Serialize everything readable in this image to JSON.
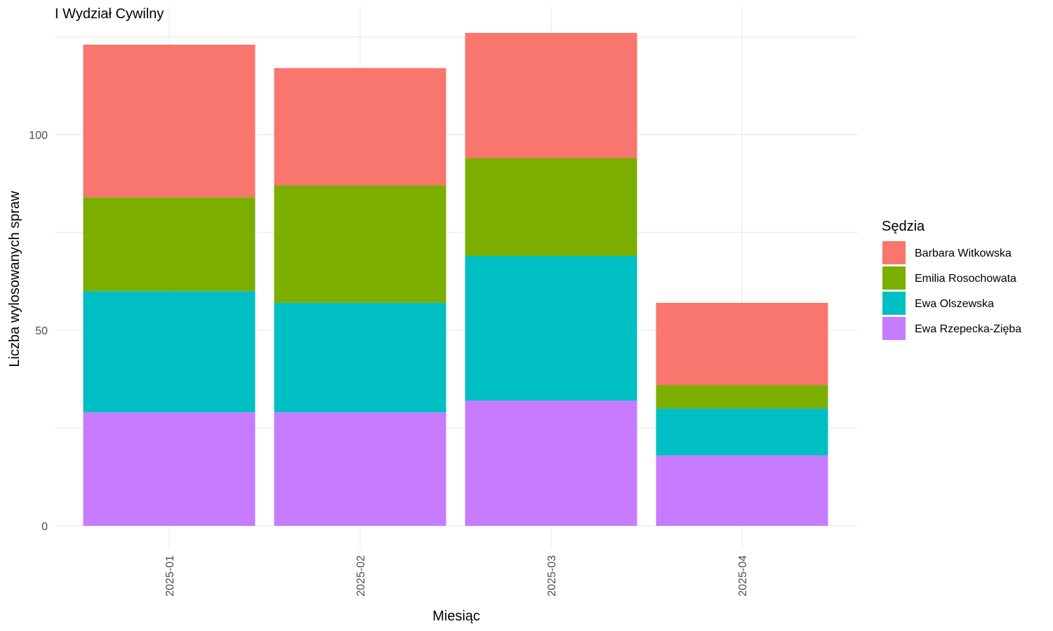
{
  "chart_data": {
    "type": "bar",
    "stacked": true,
    "title": "I Wydział Cywilny",
    "xlabel": "Miesiąc",
    "ylabel": "Liczba wylosowanych spraw",
    "categories": [
      "2025-01",
      "2025-02",
      "2025-03",
      "2025-04"
    ],
    "yticks": [
      0,
      50,
      100
    ],
    "ylim": [
      0,
      133
    ],
    "grid": true,
    "legend": {
      "title": "Sędzia",
      "placement": "right"
    },
    "series": [
      {
        "name": "Ewa Rzepecka-Zięba",
        "color": "#C77CFF",
        "values": [
          29,
          29,
          32,
          18
        ]
      },
      {
        "name": "Ewa Olszewska",
        "color": "#00BFC4",
        "values": [
          31,
          28,
          37,
          12
        ]
      },
      {
        "name": "Emilia Rosochowata",
        "color": "#7CAE00",
        "values": [
          24,
          30,
          25,
          6
        ]
      },
      {
        "name": "Barbara Witkowska",
        "color": "#F8766D",
        "values": [
          39,
          30,
          32,
          21
        ]
      }
    ],
    "legend_order": [
      "Barbara Witkowska",
      "Emilia Rosochowata",
      "Ewa Olszewska",
      "Ewa Rzepecka-Zięba"
    ]
  }
}
